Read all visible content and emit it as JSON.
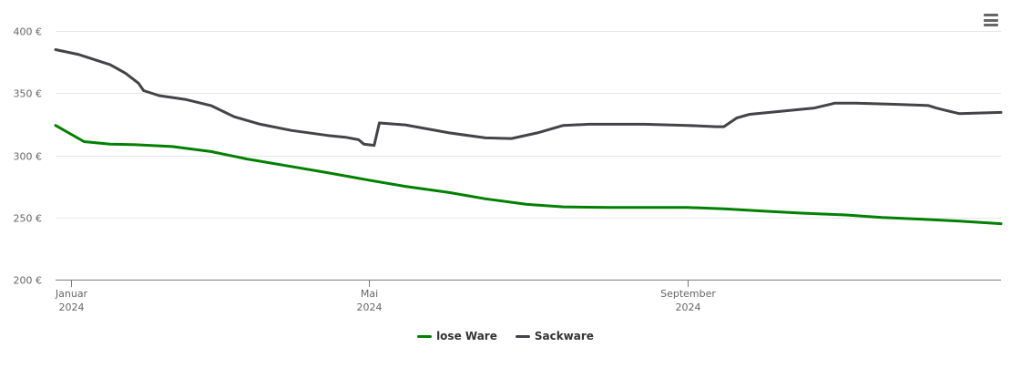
{
  "chart_data": {
    "type": "line",
    "title": "",
    "xlabel": "",
    "ylabel": "",
    "ylim": [
      200,
      400
    ],
    "xlim": [
      "2024-01-01",
      "2024-12-31"
    ],
    "y_tick_labels": [
      "200 €",
      "250 €",
      "300 €",
      "350 €",
      "400 €"
    ],
    "y_tick_values": [
      200,
      250,
      300,
      350,
      400
    ],
    "x_ticks": [
      {
        "date": "2024-01-07",
        "label": "Januar",
        "year": "2024"
      },
      {
        "date": "2024-05-01",
        "label": "Mai",
        "year": "2024"
      },
      {
        "date": "2024-09-01",
        "label": "September",
        "year": "2024"
      }
    ],
    "grid": "horizontal",
    "legend_position": "bottom-center",
    "series": [
      {
        "name": "lose Ware",
        "color": "#008000",
        "points": [
          [
            "2024-01-01",
            324
          ],
          [
            "2024-01-12",
            311
          ],
          [
            "2024-01-22",
            309
          ],
          [
            "2024-02-01",
            308.5
          ],
          [
            "2024-02-15",
            307
          ],
          [
            "2024-03-01",
            303
          ],
          [
            "2024-03-15",
            297
          ],
          [
            "2024-04-01",
            291
          ],
          [
            "2024-04-15",
            286
          ],
          [
            "2024-05-01",
            280
          ],
          [
            "2024-05-15",
            275
          ],
          [
            "2024-06-01",
            270
          ],
          [
            "2024-06-15",
            265
          ],
          [
            "2024-07-01",
            260.5
          ],
          [
            "2024-07-15",
            258.5
          ],
          [
            "2024-08-01",
            258
          ],
          [
            "2024-09-01",
            258
          ],
          [
            "2024-09-15",
            257
          ],
          [
            "2024-10-01",
            255
          ],
          [
            "2024-10-15",
            253.5
          ],
          [
            "2024-11-01",
            252
          ],
          [
            "2024-11-15",
            250
          ],
          [
            "2024-12-01",
            248.5
          ],
          [
            "2024-12-15",
            247
          ],
          [
            "2024-12-31",
            245
          ]
        ]
      },
      {
        "name": "Sackware",
        "color": "#434348",
        "points": [
          [
            "2024-01-01",
            385
          ],
          [
            "2024-01-10",
            381
          ],
          [
            "2024-01-22",
            373
          ],
          [
            "2024-01-28",
            366
          ],
          [
            "2024-02-02",
            358
          ],
          [
            "2024-02-04",
            352
          ],
          [
            "2024-02-10",
            348
          ],
          [
            "2024-02-20",
            345
          ],
          [
            "2024-03-01",
            340
          ],
          [
            "2024-03-10",
            331
          ],
          [
            "2024-03-20",
            325
          ],
          [
            "2024-04-01",
            320
          ],
          [
            "2024-04-15",
            316
          ],
          [
            "2024-04-22",
            314.5
          ],
          [
            "2024-04-27",
            312.5
          ],
          [
            "2024-04-29",
            309
          ],
          [
            "2024-05-03",
            308
          ],
          [
            "2024-05-05",
            326
          ],
          [
            "2024-05-15",
            324.5
          ],
          [
            "2024-06-01",
            318
          ],
          [
            "2024-06-15",
            314
          ],
          [
            "2024-06-25",
            313.5
          ],
          [
            "2024-07-05",
            318
          ],
          [
            "2024-07-15",
            324
          ],
          [
            "2024-07-25",
            325
          ],
          [
            "2024-08-15",
            325
          ],
          [
            "2024-09-01",
            324
          ],
          [
            "2024-09-12",
            323
          ],
          [
            "2024-09-15",
            323
          ],
          [
            "2024-09-20",
            330
          ],
          [
            "2024-09-25",
            333
          ],
          [
            "2024-10-10",
            336
          ],
          [
            "2024-10-20",
            338
          ],
          [
            "2024-10-28",
            342
          ],
          [
            "2024-11-05",
            342
          ],
          [
            "2024-11-20",
            341
          ],
          [
            "2024-12-03",
            340
          ],
          [
            "2024-12-06",
            338
          ],
          [
            "2024-12-10",
            336
          ],
          [
            "2024-12-15",
            333.5
          ],
          [
            "2024-12-31",
            334.5
          ]
        ]
      }
    ]
  },
  "legend": {
    "items": [
      {
        "label": "lose Ware",
        "color": "#008000"
      },
      {
        "label": "Sackware",
        "color": "#434348"
      }
    ]
  },
  "toolbar": {
    "menu_icon": "hamburger-menu-icon"
  }
}
